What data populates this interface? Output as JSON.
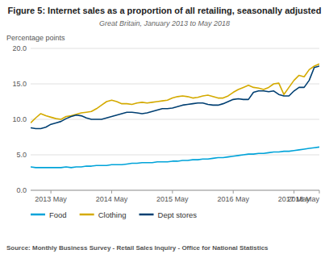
{
  "chart_data": {
    "type": "line",
    "title": "Figure 5: Internet sales as a proportion of all retailing, seasonally adjusted",
    "subtitle": "Great Britain, January 2013 to May 2018",
    "y_label": "Percentage points",
    "source": "Source: Monthly Business Survey - Retail Sales Inquiry - Office for National Statistics",
    "categories": [
      null,
      null,
      null,
      null,
      "2013 May",
      null,
      null,
      null,
      null,
      null,
      null,
      null,
      null,
      null,
      null,
      null,
      "2014 May",
      null,
      null,
      null,
      null,
      null,
      null,
      null,
      null,
      null,
      null,
      null,
      "2015 May",
      null,
      null,
      null,
      null,
      null,
      null,
      null,
      null,
      null,
      null,
      null,
      "2016 May",
      null,
      null,
      null,
      null,
      null,
      null,
      null,
      null,
      null,
      null,
      null,
      "2017 May",
      null,
      null,
      null,
      null,
      "2018 May"
    ],
    "series": [
      {
        "name": "Food",
        "color": "#00a3d9",
        "values": [
          3.3,
          3.2,
          3.2,
          3.2,
          3.2,
          3.2,
          3.2,
          3.3,
          3.2,
          3.3,
          3.3,
          3.4,
          3.4,
          3.5,
          3.5,
          3.5,
          3.6,
          3.6,
          3.6,
          3.7,
          3.8,
          3.8,
          3.9,
          3.9,
          3.9,
          4.0,
          4.0,
          4.0,
          4.1,
          4.1,
          4.2,
          4.2,
          4.3,
          4.3,
          4.4,
          4.4,
          4.5,
          4.6,
          4.6,
          4.7,
          4.8,
          4.9,
          5.0,
          5.1,
          5.1,
          5.2,
          5.2,
          5.3,
          5.4,
          5.4,
          5.5,
          5.5,
          5.6,
          5.7,
          5.8,
          5.9,
          6.0,
          6.1
        ]
      },
      {
        "name": "Clothing",
        "color": "#d4aa00",
        "values": [
          9.5,
          10.2,
          10.8,
          10.5,
          10.3,
          10.1,
          10.0,
          10.4,
          10.5,
          10.7,
          10.9,
          11.0,
          11.1,
          11.5,
          12.0,
          12.5,
          12.7,
          12.5,
          12.2,
          12.2,
          12.1,
          12.3,
          12.4,
          12.3,
          12.4,
          12.5,
          12.6,
          12.7,
          13.0,
          13.2,
          13.3,
          13.2,
          13.0,
          13.1,
          13.3,
          13.4,
          13.2,
          13.0,
          13.0,
          13.3,
          13.8,
          14.2,
          14.5,
          14.8,
          14.5,
          14.4,
          14.2,
          14.5,
          15.0,
          15.1,
          13.5,
          14.5,
          15.5,
          16.2,
          16.0,
          17.0,
          17.5,
          17.8
        ]
      },
      {
        "name": "Dept stores",
        "color": "#003f72",
        "values": [
          8.8,
          8.7,
          8.7,
          8.9,
          9.3,
          9.5,
          9.7,
          10.1,
          10.4,
          10.6,
          10.5,
          10.2,
          10.0,
          10.0,
          10.0,
          10.2,
          10.4,
          10.6,
          10.8,
          11.0,
          11.0,
          10.9,
          10.8,
          10.9,
          11.1,
          11.3,
          11.5,
          11.5,
          11.6,
          11.8,
          12.0,
          12.1,
          12.2,
          12.3,
          12.3,
          12.1,
          12.0,
          12.0,
          12.2,
          12.5,
          12.8,
          12.9,
          12.8,
          12.8,
          13.8,
          14.0,
          14.0,
          13.9,
          14.0,
          13.5,
          13.3,
          13.3,
          14.0,
          14.5,
          14.5,
          15.5,
          17.3,
          17.5
        ]
      }
    ],
    "ylim": [
      0.0,
      20.0
    ],
    "yticks": [
      {
        "value": 0,
        "label": "0.0"
      },
      {
        "value": 5,
        "label": "5.0"
      },
      {
        "value": 10,
        "label": "10.0"
      },
      {
        "value": 15,
        "label": "15.0"
      },
      {
        "value": 20,
        "label": "20.0"
      }
    ],
    "grid": true,
    "legend": "bottom"
  }
}
